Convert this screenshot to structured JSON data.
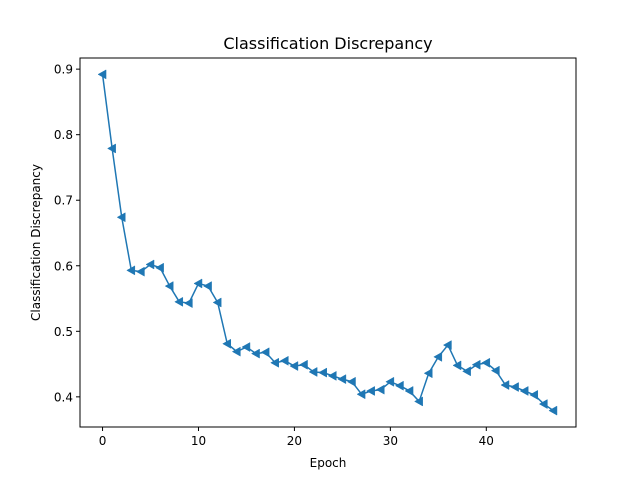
{
  "chart_data": {
    "type": "line",
    "title": "Classification Discrepancy",
    "xlabel": "Epoch",
    "ylabel": "Classification Discrepancy",
    "xlim": [
      -2.35,
      49.35
    ],
    "ylim": [
      0.354,
      0.917
    ],
    "xticks": [
      0,
      10,
      20,
      30,
      40
    ],
    "yticks": [
      0.4,
      0.5,
      0.6,
      0.7,
      0.8,
      0.9
    ],
    "ytick_labels": [
      "0.4",
      "0.5",
      "0.6",
      "0.7",
      "0.8",
      "0.9"
    ],
    "grid": false,
    "marker": "triangle-left",
    "color": "#1f77b4",
    "series": [
      {
        "x": [
          0,
          1,
          2,
          3,
          4,
          5,
          6,
          7,
          8,
          9,
          10,
          11,
          12,
          13,
          14,
          15,
          16,
          17,
          18,
          19,
          20,
          21,
          22,
          23,
          24,
          25,
          26,
          27,
          28,
          29,
          30,
          31,
          32,
          33,
          34,
          35,
          36,
          37,
          38,
          39,
          40,
          41,
          42,
          43,
          44,
          45,
          46,
          47
        ],
        "values": [
          0.892,
          0.779,
          0.674,
          0.593,
          0.591,
          0.602,
          0.597,
          0.569,
          0.545,
          0.543,
          0.573,
          0.569,
          0.544,
          0.481,
          0.469,
          0.476,
          0.466,
          0.468,
          0.452,
          0.455,
          0.447,
          0.449,
          0.438,
          0.437,
          0.432,
          0.427,
          0.423,
          0.404,
          0.409,
          0.411,
          0.423,
          0.417,
          0.409,
          0.393,
          0.436,
          0.461,
          0.479,
          0.448,
          0.439,
          0.449,
          0.452,
          0.44,
          0.418,
          0.415,
          0.409,
          0.403,
          0.389,
          0.379
        ]
      }
    ]
  }
}
